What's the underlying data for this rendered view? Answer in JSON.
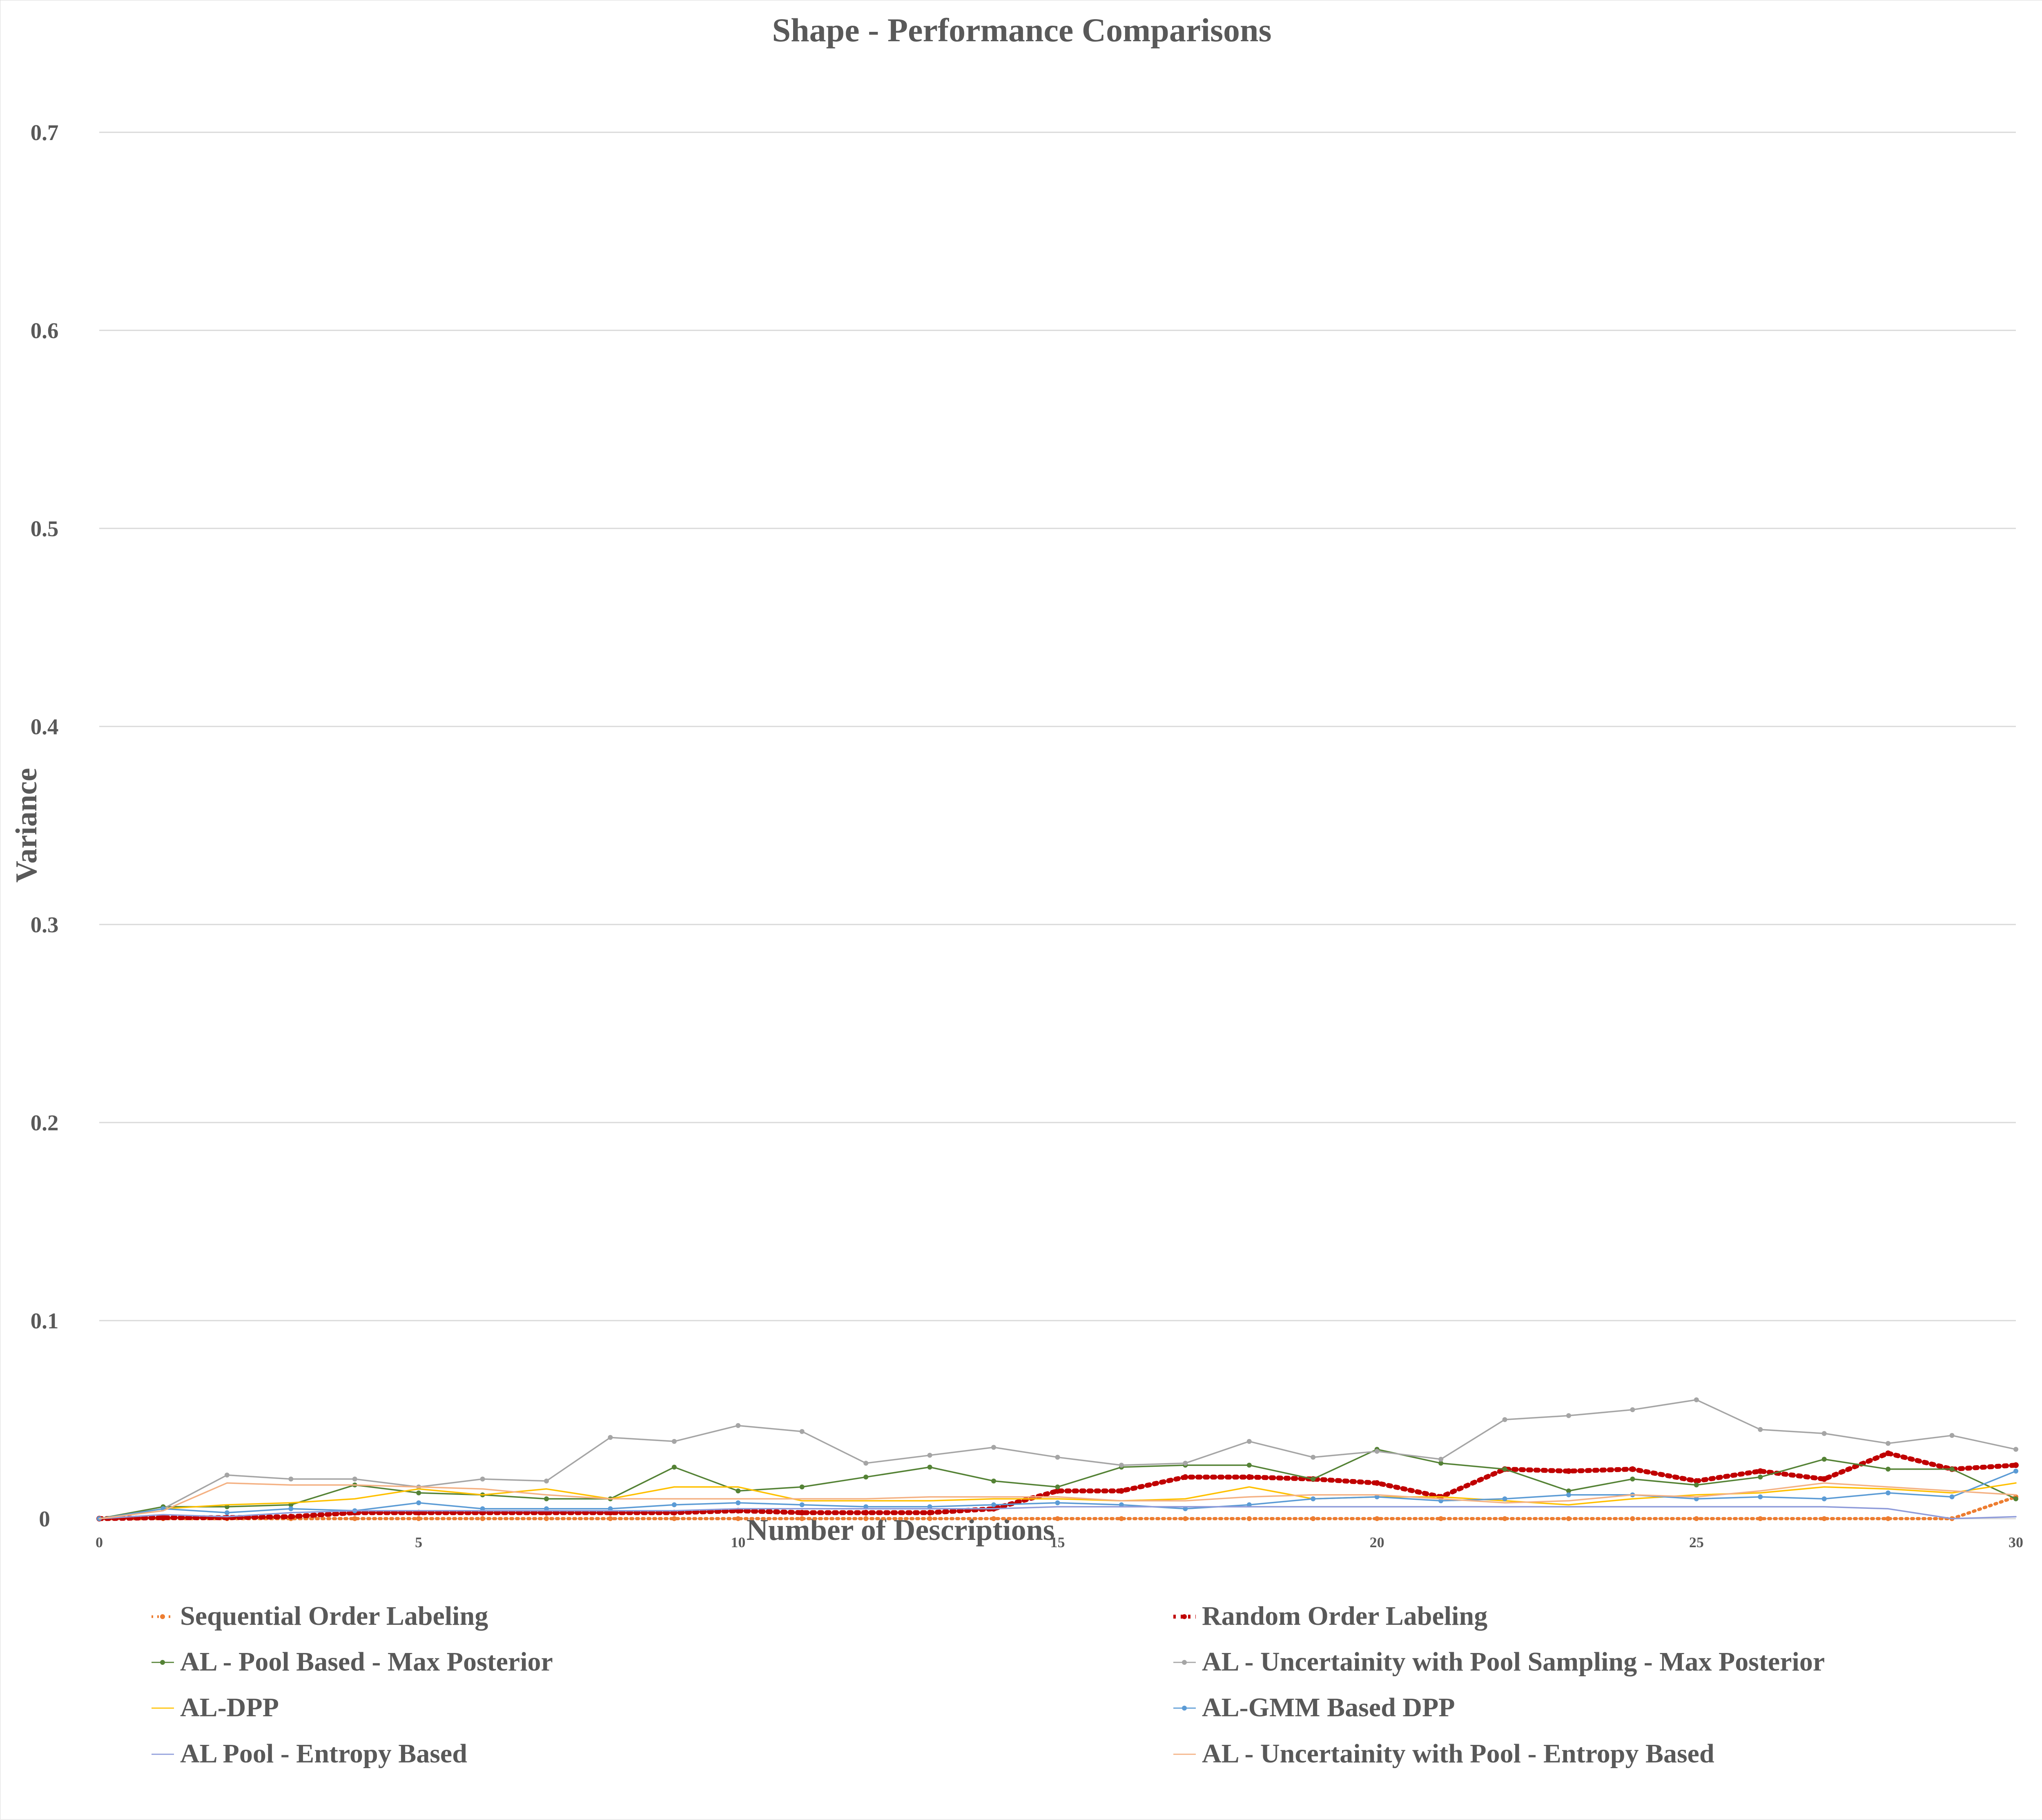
{
  "chart_data": {
    "type": "line",
    "title": "Shape - Performance Comparisons",
    "xlabel": "Number of Descriptions",
    "ylabel": "Variance",
    "xlim": [
      0,
      30
    ],
    "ylim": [
      0,
      0.7
    ],
    "x_ticks": [
      "0",
      "5",
      "10",
      "15",
      "20",
      "25",
      "30"
    ],
    "y_ticks": [
      "0",
      "0.1",
      "0.2",
      "0.3",
      "0.4",
      "0.5",
      "0.6",
      "0.7"
    ],
    "grid": true,
    "legend_position": "bottom",
    "x": [
      0,
      1,
      2,
      3,
      4,
      5,
      6,
      7,
      8,
      9,
      10,
      11,
      12,
      13,
      14,
      15,
      16,
      17,
      18,
      19,
      20,
      21,
      22,
      23,
      24,
      25,
      26,
      27,
      28,
      29,
      30
    ],
    "series": [
      {
        "name": "Sequential Order Labeling",
        "color": "#ED7D31",
        "style": "dotted",
        "marker": "circle",
        "values": [
          0,
          0,
          0,
          0,
          0,
          0,
          0,
          0,
          0,
          0,
          0,
          0,
          0,
          0,
          0,
          0,
          0,
          0,
          0,
          0,
          0,
          0,
          0,
          0,
          0,
          0,
          0,
          0,
          0,
          0,
          0.011
        ]
      },
      {
        "name": "Random Order Labeling",
        "color": "#C00000",
        "style": "dotted-thick",
        "marker": "circle",
        "values": [
          0,
          0.0005,
          0.0005,
          0.001,
          0.003,
          0.003,
          0.003,
          0.003,
          0.003,
          0.003,
          0.004,
          0.003,
          0.003,
          0.003,
          0.005,
          0.014,
          0.014,
          0.021,
          0.021,
          0.02,
          0.018,
          0.011,
          0.025,
          0.024,
          0.025,
          0.019,
          0.024,
          0.02,
          0.033,
          0.025,
          0.027
        ]
      },
      {
        "name": "AL - Pool Based - Max Posterior",
        "color": "#548235",
        "style": "solid",
        "marker": "circle",
        "values": [
          0,
          0.006,
          0.006,
          0.007,
          0.017,
          0.013,
          0.012,
          0.01,
          0.01,
          0.026,
          0.014,
          0.016,
          0.021,
          0.026,
          0.019,
          0.016,
          0.026,
          0.027,
          0.027,
          0.02,
          0.035,
          0.028,
          0.025,
          0.014,
          0.02,
          0.017,
          0.021,
          0.03,
          0.025,
          0.025,
          0.01
        ]
      },
      {
        "name": "AL - Uncertainity with Pool Sampling - Max Posterior",
        "color": "#A5A5A5",
        "style": "solid",
        "marker": "circle",
        "values": [
          0,
          0.005,
          0.022,
          0.02,
          0.02,
          0.016,
          0.02,
          0.019,
          0.041,
          0.039,
          0.047,
          0.044,
          0.028,
          0.032,
          0.036,
          0.031,
          0.027,
          0.028,
          0.039,
          0.031,
          0.034,
          0.03,
          0.05,
          0.052,
          0.055,
          0.06,
          0.045,
          0.043,
          0.038,
          0.042,
          0.035
        ]
      },
      {
        "name": "AL-DPP",
        "color": "#FFC000",
        "style": "solid",
        "marker": "none",
        "values": [
          0,
          0.005,
          0.007,
          0.008,
          0.01,
          0.015,
          0.012,
          0.015,
          0.01,
          0.016,
          0.016,
          0.009,
          0.009,
          0.009,
          0.01,
          0.01,
          0.009,
          0.01,
          0.016,
          0.01,
          0.011,
          0.011,
          0.009,
          0.007,
          0.01,
          0.012,
          0.013,
          0.016,
          0.015,
          0.013,
          0.018
        ]
      },
      {
        "name": "AL-GMM Based DPP",
        "color": "#5B9BD5",
        "style": "solid",
        "marker": "circle",
        "values": [
          0,
          0.005,
          0.003,
          0.005,
          0.004,
          0.008,
          0.005,
          0.005,
          0.005,
          0.007,
          0.008,
          0.007,
          0.006,
          0.006,
          0.007,
          0.008,
          0.007,
          0.005,
          0.007,
          0.01,
          0.011,
          0.009,
          0.01,
          0.012,
          0.012,
          0.01,
          0.011,
          0.01,
          0.013,
          0.011,
          0.024
        ]
      },
      {
        "name": "AL Pool - Entropy Based",
        "color": "#8E9BDA",
        "style": "solid",
        "marker": "none",
        "values": [
          0,
          0.002,
          0.001,
          0.003,
          0.004,
          0.004,
          0.004,
          0.004,
          0.004,
          0.004,
          0.005,
          0.005,
          0.005,
          0.005,
          0.005,
          0.006,
          0.006,
          0.006,
          0.006,
          0.006,
          0.006,
          0.006,
          0.006,
          0.006,
          0.006,
          0.006,
          0.006,
          0.006,
          0.005,
          0,
          0.001
        ]
      },
      {
        "name": "AL - Uncertainity with Pool - Entropy Based",
        "color": "#F4B183",
        "style": "solid",
        "marker": "none",
        "values": [
          0,
          0.004,
          0.018,
          0.017,
          0.017,
          0.016,
          0.015,
          0.012,
          0.01,
          0.01,
          0.01,
          0.01,
          0.01,
          0.011,
          0.011,
          0.011,
          0.009,
          0.009,
          0.011,
          0.012,
          0.012,
          0.01,
          0.008,
          0.009,
          0.012,
          0.011,
          0.014,
          0.018,
          0.016,
          0.014,
          0.012
        ]
      }
    ]
  }
}
